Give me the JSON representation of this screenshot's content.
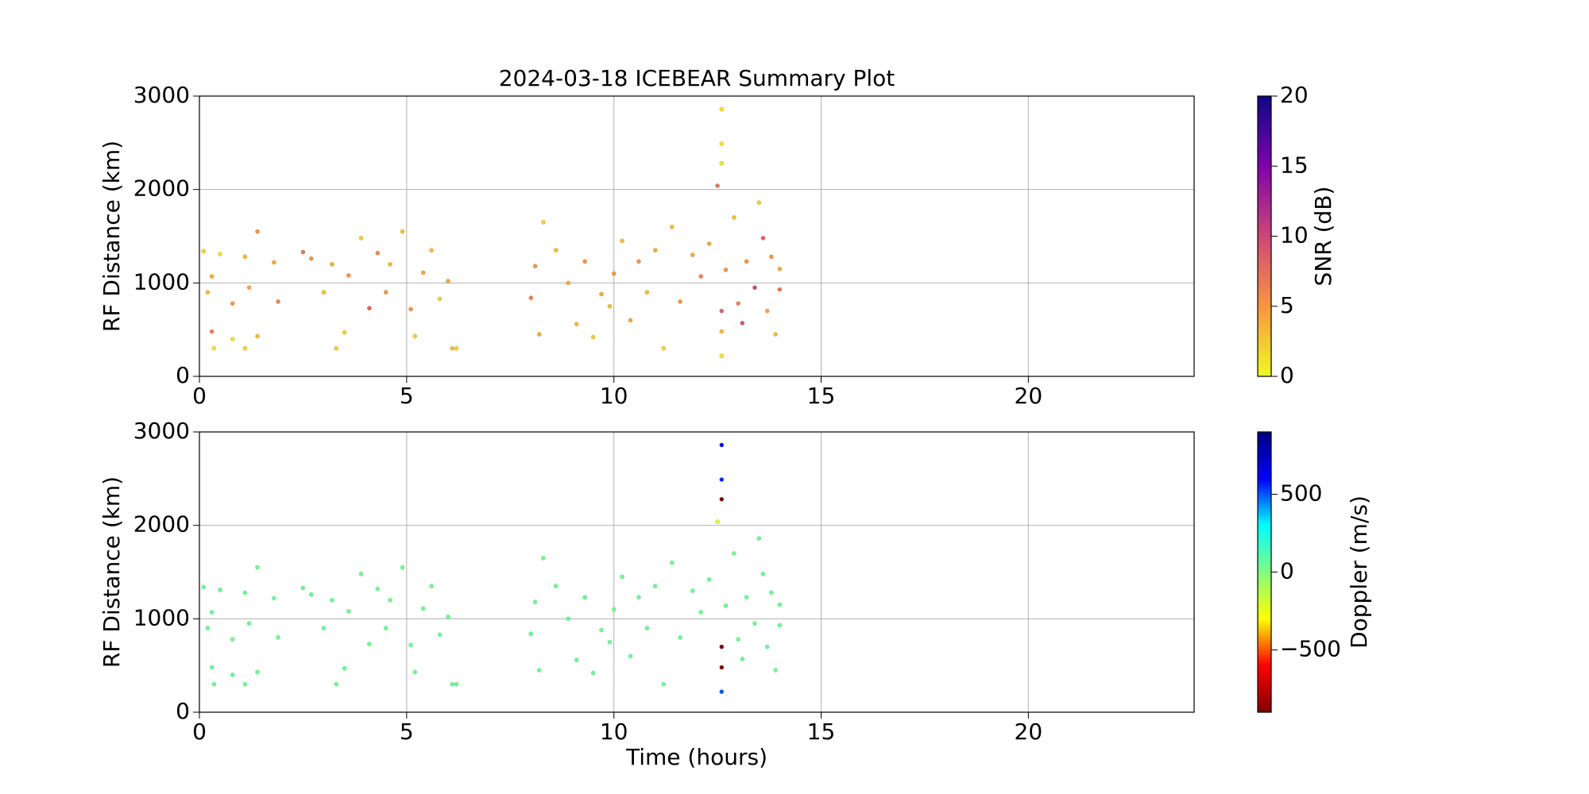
{
  "chart_data": [
    {
      "type": "scatter",
      "title": "2024-03-18 ICEBEAR Summary Plot",
      "y_label": "RF Distance (km)",
      "xlim": [
        0,
        24
      ],
      "xticks": [
        0,
        5,
        10,
        15,
        20
      ],
      "ylim": [
        0,
        3000
      ],
      "yticks": [
        0,
        1000,
        2000,
        3000
      ],
      "grid": true,
      "x": [
        0.1,
        0.2,
        0.3,
        0.3,
        0.35,
        0.5,
        0.8,
        0.8,
        1.1,
        1.1,
        1.2,
        1.4,
        1.4,
        1.8,
        1.9,
        2.5,
        2.7,
        3.0,
        3.2,
        3.3,
        3.5,
        3.6,
        3.9,
        4.1,
        4.3,
        4.5,
        4.6,
        4.9,
        5.1,
        5.2,
        5.4,
        5.6,
        5.8,
        6.0,
        6.1,
        6.2,
        8.0,
        8.1,
        8.2,
        8.3,
        8.6,
        8.9,
        9.1,
        9.3,
        9.5,
        9.7,
        9.9,
        10.0,
        10.2,
        10.4,
        10.6,
        10.8,
        11.0,
        11.2,
        11.4,
        11.6,
        11.9,
        12.1,
        12.3,
        12.5,
        12.6,
        12.6,
        12.6,
        12.6,
        12.6,
        12.6,
        12.7,
        12.9,
        13.0,
        13.1,
        13.2,
        13.4,
        13.5,
        13.6,
        13.7,
        13.8,
        13.9,
        14.0,
        14.0
      ],
      "y": [
        1340,
        900,
        480,
        1070,
        300,
        1310,
        780,
        400,
        1280,
        300,
        950,
        1550,
        430,
        1220,
        800,
        1330,
        1260,
        900,
        1200,
        300,
        470,
        1080,
        1480,
        730,
        1320,
        900,
        1200,
        1550,
        720,
        430,
        1110,
        1350,
        830,
        1020,
        300,
        300,
        840,
        1180,
        450,
        1650,
        1350,
        1000,
        560,
        1230,
        420,
        880,
        750,
        1100,
        1450,
        600,
        1230,
        900,
        1350,
        300,
        1600,
        800,
        1300,
        1070,
        1420,
        2040,
        2860,
        2490,
        2280,
        700,
        480,
        220,
        1140,
        1700,
        780,
        570,
        1230,
        950,
        1860,
        1480,
        700,
        1280,
        450,
        1150,
        930
      ],
      "c": [
        2,
        3,
        6,
        4,
        1,
        1,
        5,
        1,
        3,
        2,
        4,
        5,
        3,
        4,
        6,
        7,
        5,
        3,
        4,
        2,
        2,
        5,
        2,
        8,
        6,
        5,
        3,
        3,
        5,
        2,
        4,
        3,
        2,
        4,
        3,
        2,
        6,
        5,
        4,
        2,
        3,
        4,
        3,
        5,
        2,
        4,
        3,
        5,
        3,
        4,
        5,
        3,
        4,
        2,
        3,
        5,
        4,
        6,
        4,
        7,
        1,
        1,
        1,
        8,
        3,
        1,
        5,
        3,
        6,
        9,
        5,
        10,
        2,
        8,
        4,
        5,
        3,
        4,
        7
      ],
      "c_label": "SNR (dB)",
      "clim": [
        0,
        20
      ],
      "cticks": [
        0,
        5,
        10,
        15,
        20
      ],
      "colormap": [
        "#f0f921",
        "#f89540",
        "#cc4778",
        "#7e03a8",
        "#0d0887"
      ]
    },
    {
      "type": "scatter",
      "x_label": "Time (hours)",
      "y_label": "RF Distance (km)",
      "xlim": [
        0,
        24
      ],
      "xticks": [
        0,
        5,
        10,
        15,
        20
      ],
      "ylim": [
        0,
        3000
      ],
      "yticks": [
        0,
        1000,
        2000,
        3000
      ],
      "grid": true,
      "x": [
        0.1,
        0.2,
        0.3,
        0.3,
        0.35,
        0.5,
        0.8,
        0.8,
        1.1,
        1.1,
        1.2,
        1.4,
        1.4,
        1.8,
        1.9,
        2.5,
        2.7,
        3.0,
        3.2,
        3.3,
        3.5,
        3.6,
        3.9,
        4.1,
        4.3,
        4.5,
        4.6,
        4.9,
        5.1,
        5.2,
        5.4,
        5.6,
        5.8,
        6.0,
        6.1,
        6.2,
        8.0,
        8.1,
        8.2,
        8.3,
        8.6,
        8.9,
        9.1,
        9.3,
        9.5,
        9.7,
        9.9,
        10.0,
        10.2,
        10.4,
        10.6,
        10.8,
        11.0,
        11.2,
        11.4,
        11.6,
        11.9,
        12.1,
        12.3,
        12.5,
        12.6,
        12.6,
        12.6,
        12.6,
        12.6,
        12.6,
        12.7,
        12.9,
        13.0,
        13.1,
        13.2,
        13.4,
        13.5,
        13.6,
        13.7,
        13.8,
        13.9,
        14.0,
        14.0
      ],
      "y": [
        1340,
        900,
        480,
        1070,
        300,
        1310,
        780,
        400,
        1280,
        300,
        950,
        1550,
        430,
        1220,
        800,
        1330,
        1260,
        900,
        1200,
        300,
        470,
        1080,
        1480,
        730,
        1320,
        900,
        1200,
        1550,
        720,
        430,
        1110,
        1350,
        830,
        1020,
        300,
        300,
        840,
        1180,
        450,
        1650,
        1350,
        1000,
        560,
        1230,
        420,
        880,
        750,
        1100,
        1450,
        600,
        1230,
        900,
        1350,
        300,
        1600,
        800,
        1300,
        1070,
        1420,
        2040,
        2860,
        2490,
        2280,
        700,
        480,
        220,
        1140,
        1700,
        780,
        570,
        1230,
        950,
        1860,
        1480,
        700,
        1280,
        450,
        1150,
        930
      ],
      "c": [
        50,
        50,
        50,
        50,
        50,
        50,
        50,
        50,
        50,
        50,
        50,
        50,
        50,
        50,
        50,
        50,
        50,
        50,
        50,
        50,
        50,
        50,
        50,
        50,
        50,
        50,
        50,
        50,
        50,
        50,
        50,
        50,
        50,
        50,
        50,
        50,
        50,
        50,
        50,
        50,
        50,
        50,
        50,
        50,
        50,
        50,
        50,
        50,
        50,
        50,
        50,
        50,
        50,
        50,
        50,
        50,
        50,
        50,
        50,
        -200,
        600,
        550,
        -900,
        -900,
        -900,
        500,
        50,
        50,
        50,
        50,
        50,
        50,
        50,
        50,
        50,
        50,
        50,
        50,
        50
      ],
      "c_label": "Doppler (m/s)",
      "clim": [
        -900,
        900
      ],
      "cticks": [
        {
          "value": -500,
          "label": "−500"
        },
        0,
        500
      ],
      "colormap": [
        "#800000",
        "#ff0000",
        "#ffff00",
        "#80ff80",
        "#00ffff",
        "#0000ff",
        "#000080"
      ]
    }
  ]
}
